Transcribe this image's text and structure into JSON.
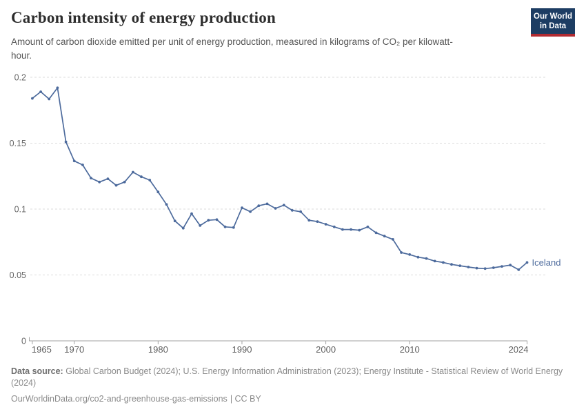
{
  "header": {
    "title": "Carbon intensity of energy production",
    "subtitle": "Amount of carbon dioxide emitted per unit of energy production, measured in kilograms of CO₂ per kilowatt-hour."
  },
  "logo": {
    "line1": "Our World",
    "line2": "in Data",
    "bg_color": "#1d3d63",
    "accent_color": "#b22b31"
  },
  "chart_data": {
    "type": "line",
    "title": "Carbon intensity of energy production",
    "unit": "kilograms of CO₂ per kilowatt-hour",
    "xlabel": "",
    "ylabel": "",
    "ylim": [
      0,
      0.2
    ],
    "y_ticks": [
      0,
      0.05,
      0.1,
      0.15,
      0.2
    ],
    "y_tick_labels": [
      "0",
      "0.05",
      "0.1",
      "0.15",
      "0.2"
    ],
    "x_range": [
      1965,
      2024
    ],
    "x_ticks": [
      1965,
      1970,
      1980,
      1990,
      2000,
      2010,
      2024
    ],
    "grid": "horizontal-dashed",
    "legend_position": "end-of-line-label",
    "x": [
      1965,
      1966,
      1967,
      1968,
      1969,
      1970,
      1971,
      1972,
      1973,
      1974,
      1975,
      1976,
      1977,
      1978,
      1979,
      1980,
      1981,
      1982,
      1983,
      1984,
      1985,
      1986,
      1987,
      1988,
      1989,
      1990,
      1991,
      1992,
      1993,
      1994,
      1995,
      1996,
      1997,
      1998,
      1999,
      2000,
      2001,
      2002,
      2003,
      2004,
      2005,
      2006,
      2007,
      2008,
      2009,
      2010,
      2011,
      2012,
      2013,
      2014,
      2015,
      2016,
      2017,
      2018,
      2019,
      2020,
      2021,
      2022,
      2023,
      2024
    ],
    "series": [
      {
        "name": "Iceland",
        "color": "#4c6a9c",
        "values": [
          0.184,
          0.189,
          0.1835,
          0.192,
          0.151,
          0.1365,
          0.1335,
          0.1235,
          0.1205,
          0.123,
          0.118,
          0.1205,
          0.128,
          0.1245,
          0.122,
          0.113,
          0.1035,
          0.091,
          0.0855,
          0.0965,
          0.0875,
          0.0915,
          0.092,
          0.0865,
          0.086,
          0.101,
          0.098,
          0.1025,
          0.104,
          0.1005,
          0.103,
          0.099,
          0.098,
          0.0915,
          0.0905,
          0.0885,
          0.0865,
          0.0845,
          0.0845,
          0.084,
          0.0865,
          0.082,
          0.0795,
          0.077,
          0.067,
          0.0655,
          0.0635,
          0.0625,
          0.0605,
          0.0595,
          0.058,
          0.057,
          0.056,
          0.0552,
          0.0548,
          0.0555,
          0.0565,
          0.0575,
          0.054,
          0.0595
        ]
      }
    ]
  },
  "footer": {
    "data_source_label": "Data source:",
    "data_source_text": "Global Carbon Budget (2024); U.S. Energy Information Administration (2023); Energy Institute - Statistical Review of World Energy (2024)",
    "url": "OurWorldinData.org/co2-and-greenhouse-gas-emissions",
    "license": "| CC BY"
  }
}
